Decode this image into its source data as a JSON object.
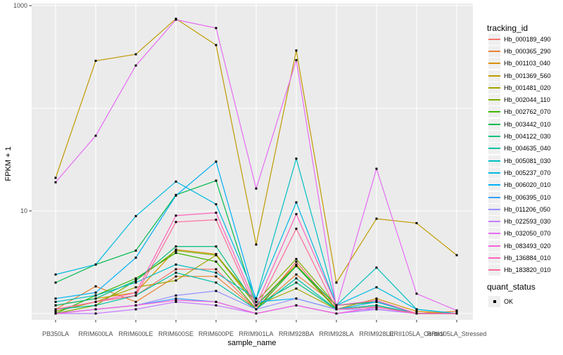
{
  "chart_data": {
    "type": "line",
    "title": "",
    "xlabel": "sample_name",
    "ylabel": "FPKM + 1",
    "y_scale": "log10",
    "ylim": [
      0.85,
      1100
    ],
    "y_axis_ticks": [
      {
        "value": 1000,
        "label": "1000"
      },
      {
        "value": 10,
        "label": "10"
      }
    ],
    "y_gridline_values": [
      1,
      10,
      100,
      1000
    ],
    "grid": "on",
    "panel_bg": "#EBEBEB",
    "grid_color": "#FFFFFF",
    "point_color": "#000000",
    "point_shape": "square",
    "legend_position": "right",
    "categories": [
      "PB350LA",
      "RRIM600LA",
      "RRIM600LE",
      "RRIM600SE",
      "RRIM600PE",
      "RRIM901LA",
      "RRIM928BA",
      "RRIM928LA",
      "RRIM928LE",
      "RRII105LA_Control",
      "RRII105LA_Stressed"
    ],
    "series": [
      {
        "name": "Hb_000189_490",
        "color": "#F8766D",
        "values": [
          1.05,
          1.3,
          1.5,
          2.7,
          2.7,
          1.1,
          3.2,
          1.1,
          1.2,
          1.0,
          1.0
        ]
      },
      {
        "name": "Hb_000365_290",
        "color": "#EA8331",
        "values": [
          1.1,
          1.84,
          1.3,
          2.3,
          2.3,
          1.1,
          2.4,
          1.2,
          1.3,
          1.0,
          1.05
        ]
      },
      {
        "name": "Hb_001103_040",
        "color": "#D89000",
        "values": [
          1.2,
          1.4,
          1.6,
          4.2,
          3.8,
          1.2,
          3.0,
          1.1,
          1.4,
          1.05,
          1.0
        ]
      },
      {
        "name": "Hb_001369_560",
        "color": "#C09B00",
        "values": [
          21,
          290,
          336,
          745,
          413,
          4.7,
          365,
          2.0,
          8.4,
          7.6,
          3.7
        ]
      },
      {
        "name": "Hb_001481_020",
        "color": "#A3A500",
        "values": [
          1.05,
          1.3,
          1.8,
          2.1,
          3.7,
          1.2,
          1.75,
          1.1,
          1.2,
          1.0,
          1.0
        ]
      },
      {
        "name": "Hb_002044_110",
        "color": "#7CAE00",
        "values": [
          1.0,
          1.2,
          2.1,
          4.1,
          3.7,
          1.3,
          3.4,
          1.2,
          1.3,
          1.0,
          1.0
        ]
      },
      {
        "name": "Hb_002762_070",
        "color": "#39B600",
        "values": [
          1.0,
          1.5,
          2.2,
          3.9,
          3.2,
          1.1,
          2.9,
          1.1,
          1.2,
          1.0,
          1.0
        ]
      },
      {
        "name": "Hb_003442_010",
        "color": "#00BB4E",
        "values": [
          2.0,
          3.0,
          4.1,
          14.3,
          19.7,
          1.2,
          2.9,
          1.2,
          1.3,
          1.0,
          1.0
        ]
      },
      {
        "name": "Hb_004122_030",
        "color": "#00BF7D",
        "values": [
          1.2,
          1.4,
          2.1,
          4.5,
          4.5,
          1.2,
          2.0,
          1.1,
          1.2,
          1.0,
          1.0
        ]
      },
      {
        "name": "Hb_004635_040",
        "color": "#00C1A3",
        "values": [
          1.1,
          1.2,
          1.5,
          2.5,
          2.0,
          1.1,
          2.2,
          1.1,
          1.2,
          1.0,
          1.0
        ]
      },
      {
        "name": "Hb_005081_030",
        "color": "#00BFC4",
        "values": [
          1.3,
          1.5,
          2.0,
          3.0,
          2.5,
          1.4,
          32.3,
          1.2,
          2.8,
          1.1,
          1.0
        ]
      },
      {
        "name": "Hb_005237_070",
        "color": "#00BAE0",
        "values": [
          2.4,
          3.0,
          8.9,
          19.3,
          11.6,
          1.4,
          12.1,
          1.2,
          1.8,
          1.1,
          1.0
        ]
      },
      {
        "name": "Hb_006020_010",
        "color": "#00B0F6",
        "values": [
          1.4,
          1.6,
          3.5,
          14.1,
          30.2,
          1.3,
          1.4,
          1.1,
          1.3,
          1.0,
          1.0
        ]
      },
      {
        "name": "Hb_006395_010",
        "color": "#35A2FF",
        "values": [
          1.0,
          1.1,
          1.2,
          1.4,
          1.3,
          1.0,
          1.2,
          1.0,
          1.1,
          1.0,
          1.0
        ]
      },
      {
        "name": "Hb_011206_050",
        "color": "#9590FF",
        "values": [
          1.0,
          1.1,
          1.2,
          1.5,
          1.66,
          1.1,
          1.4,
          1.1,
          1.1,
          1.0,
          1.0
        ]
      },
      {
        "name": "Hb_022593_030",
        "color": "#C77CFF",
        "values": [
          1.0,
          1.0,
          1.1,
          1.3,
          1.2,
          1.0,
          1.2,
          1.0,
          1.1,
          1.0,
          1.0
        ]
      },
      {
        "name": "Hb_032050_070",
        "color": "#E76BF3",
        "values": [
          19,
          54,
          261,
          730,
          605,
          16.5,
          294,
          1.15,
          25.7,
          1.56,
          1.07
        ]
      },
      {
        "name": "Hb_083493_020",
        "color": "#FA62DB",
        "values": [
          1.0,
          1.1,
          1.2,
          1.35,
          1.3,
          1.0,
          1.2,
          1.0,
          1.15,
          1.0,
          1.0
        ]
      },
      {
        "name": "Hb_136884_010",
        "color": "#FF62BC",
        "values": [
          1.1,
          1.3,
          1.6,
          9.0,
          9.6,
          1.2,
          9.3,
          1.2,
          1.34,
          1.0,
          1.0
        ]
      },
      {
        "name": "Hb_183820_010",
        "color": "#FF6A98",
        "values": [
          1.1,
          1.3,
          1.5,
          7.8,
          8.2,
          1.1,
          6.7,
          1.1,
          1.16,
          1.0,
          1.0
        ]
      }
    ],
    "legend": {
      "title": "tracking_id"
    },
    "quant_legend": {
      "title": "quant_status",
      "items": [
        {
          "label": "OK",
          "marker": "black-square"
        }
      ]
    }
  }
}
